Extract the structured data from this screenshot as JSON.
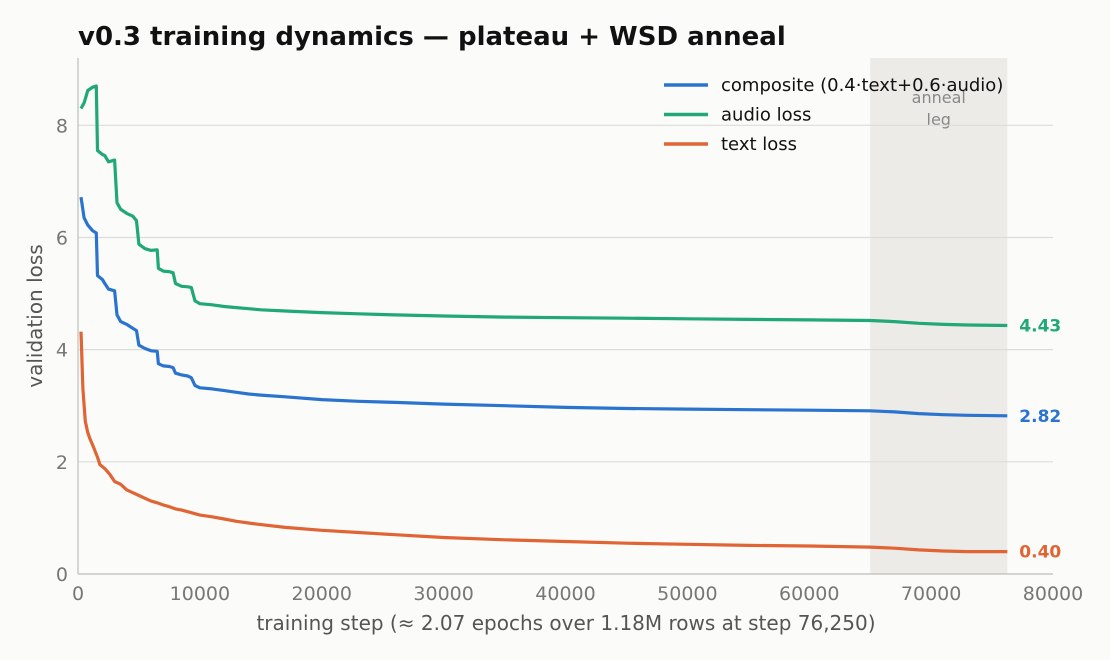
{
  "chart_data": {
    "type": "line",
    "title": "v0.3 training dynamics — plateau + WSD anneal",
    "xlabel": "training step  (≈ 2.07 epochs over 1.18M rows at step 76,250)",
    "ylabel": "validation loss",
    "xlim": [
      0,
      80000
    ],
    "ylim": [
      0,
      9.2
    ],
    "xticks": [
      0,
      10000,
      20000,
      30000,
      40000,
      50000,
      60000,
      70000,
      80000
    ],
    "yticks": [
      0,
      2,
      4,
      6,
      8
    ],
    "grid": "horizontal",
    "legend_position": "top-right",
    "anneal_region": {
      "x_start": 65000,
      "x_end": 76250,
      "label_line1": "anneal",
      "label_line2": "leg"
    },
    "series": [
      {
        "name": "composite (0.4·text+0.6·audio)",
        "color": "#2a74d0",
        "end_label": "2.82",
        "points": [
          [
            250,
            6.72
          ],
          [
            500,
            6.35
          ],
          [
            800,
            6.22
          ],
          [
            1200,
            6.12
          ],
          [
            1500,
            6.08
          ],
          [
            1600,
            5.32
          ],
          [
            2000,
            5.25
          ],
          [
            2200,
            5.18
          ],
          [
            2500,
            5.08
          ],
          [
            3000,
            5.05
          ],
          [
            3200,
            4.62
          ],
          [
            3500,
            4.5
          ],
          [
            4000,
            4.45
          ],
          [
            4500,
            4.38
          ],
          [
            4800,
            4.34
          ],
          [
            5000,
            4.08
          ],
          [
            5500,
            4.02
          ],
          [
            6000,
            3.98
          ],
          [
            6500,
            3.97
          ],
          [
            6600,
            3.75
          ],
          [
            7000,
            3.71
          ],
          [
            7500,
            3.7
          ],
          [
            7800,
            3.68
          ],
          [
            8000,
            3.58
          ],
          [
            8500,
            3.55
          ],
          [
            9000,
            3.53
          ],
          [
            9300,
            3.5
          ],
          [
            9600,
            3.36
          ],
          [
            10000,
            3.32
          ],
          [
            11000,
            3.3
          ],
          [
            12000,
            3.27
          ],
          [
            13000,
            3.24
          ],
          [
            14000,
            3.21
          ],
          [
            15000,
            3.19
          ],
          [
            17000,
            3.16
          ],
          [
            20000,
            3.11
          ],
          [
            23000,
            3.08
          ],
          [
            26000,
            3.06
          ],
          [
            30000,
            3.03
          ],
          [
            35000,
            3.0
          ],
          [
            40000,
            2.97
          ],
          [
            45000,
            2.95
          ],
          [
            50000,
            2.94
          ],
          [
            55000,
            2.93
          ],
          [
            60000,
            2.92
          ],
          [
            65000,
            2.91
          ],
          [
            67000,
            2.89
          ],
          [
            69000,
            2.86
          ],
          [
            71000,
            2.84
          ],
          [
            73000,
            2.83
          ],
          [
            76250,
            2.82
          ]
        ]
      },
      {
        "name": "audio loss",
        "color": "#20a878",
        "end_label": "4.43",
        "points": [
          [
            250,
            8.3
          ],
          [
            500,
            8.4
          ],
          [
            800,
            8.62
          ],
          [
            1200,
            8.68
          ],
          [
            1500,
            8.7
          ],
          [
            1600,
            7.55
          ],
          [
            2000,
            7.48
          ],
          [
            2200,
            7.46
          ],
          [
            2500,
            7.35
          ],
          [
            3000,
            7.38
          ],
          [
            3200,
            6.62
          ],
          [
            3500,
            6.5
          ],
          [
            4000,
            6.43
          ],
          [
            4500,
            6.38
          ],
          [
            4800,
            6.3
          ],
          [
            5000,
            5.88
          ],
          [
            5500,
            5.8
          ],
          [
            6000,
            5.77
          ],
          [
            6500,
            5.78
          ],
          [
            6600,
            5.45
          ],
          [
            7000,
            5.4
          ],
          [
            7500,
            5.39
          ],
          [
            7800,
            5.37
          ],
          [
            8000,
            5.18
          ],
          [
            8500,
            5.13
          ],
          [
            9000,
            5.12
          ],
          [
            9300,
            5.11
          ],
          [
            9600,
            4.87
          ],
          [
            10000,
            4.82
          ],
          [
            11000,
            4.8
          ],
          [
            12000,
            4.77
          ],
          [
            13000,
            4.75
          ],
          [
            14000,
            4.73
          ],
          [
            15000,
            4.71
          ],
          [
            17000,
            4.69
          ],
          [
            20000,
            4.66
          ],
          [
            23000,
            4.64
          ],
          [
            26000,
            4.62
          ],
          [
            30000,
            4.6
          ],
          [
            35000,
            4.58
          ],
          [
            40000,
            4.57
          ],
          [
            45000,
            4.56
          ],
          [
            50000,
            4.55
          ],
          [
            55000,
            4.54
          ],
          [
            60000,
            4.53
          ],
          [
            65000,
            4.52
          ],
          [
            67000,
            4.5
          ],
          [
            69000,
            4.47
          ],
          [
            71000,
            4.45
          ],
          [
            73000,
            4.44
          ],
          [
            76250,
            4.43
          ]
        ]
      },
      {
        "name": "text loss",
        "color": "#e06434",
        "end_label": "0.40",
        "points": [
          [
            250,
            4.32
          ],
          [
            400,
            3.3
          ],
          [
            600,
            2.72
          ],
          [
            800,
            2.52
          ],
          [
            1000,
            2.4
          ],
          [
            1300,
            2.25
          ],
          [
            1600,
            2.08
          ],
          [
            1800,
            1.95
          ],
          [
            2200,
            1.88
          ],
          [
            2600,
            1.78
          ],
          [
            3000,
            1.65
          ],
          [
            3500,
            1.6
          ],
          [
            4000,
            1.5
          ],
          [
            4500,
            1.45
          ],
          [
            5000,
            1.4
          ],
          [
            5500,
            1.35
          ],
          [
            6000,
            1.3
          ],
          [
            6500,
            1.27
          ],
          [
            7000,
            1.23
          ],
          [
            7500,
            1.2
          ],
          [
            8000,
            1.16
          ],
          [
            8500,
            1.14
          ],
          [
            9000,
            1.11
          ],
          [
            10000,
            1.05
          ],
          [
            11000,
            1.02
          ],
          [
            12000,
            0.98
          ],
          [
            13000,
            0.94
          ],
          [
            14000,
            0.91
          ],
          [
            15000,
            0.88
          ],
          [
            17000,
            0.83
          ],
          [
            20000,
            0.78
          ],
          [
            23000,
            0.74
          ],
          [
            26000,
            0.7
          ],
          [
            30000,
            0.65
          ],
          [
            35000,
            0.61
          ],
          [
            40000,
            0.58
          ],
          [
            45000,
            0.55
          ],
          [
            50000,
            0.53
          ],
          [
            55000,
            0.51
          ],
          [
            60000,
            0.5
          ],
          [
            65000,
            0.48
          ],
          [
            67000,
            0.46
          ],
          [
            69000,
            0.43
          ],
          [
            71000,
            0.41
          ],
          [
            73000,
            0.4
          ],
          [
            76250,
            0.4
          ]
        ]
      }
    ]
  }
}
